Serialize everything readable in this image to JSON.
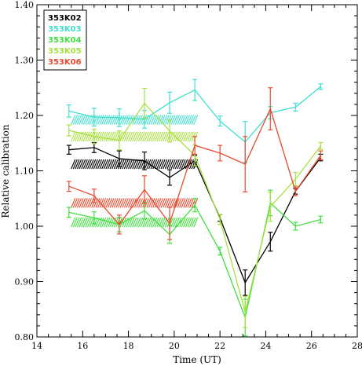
{
  "chart_data": {
    "type": "line",
    "xlabel": "Time (UT)",
    "ylabel": "Relative calibration",
    "xlim": [
      14,
      28
    ],
    "ylim": [
      0.8,
      1.4
    ],
    "xticks": [
      "14",
      "16",
      "18",
      "20",
      "22",
      "24",
      "26",
      "28"
    ],
    "yticks": [
      "0.80",
      "0.90",
      "1.00",
      "1.10",
      "1.20",
      "1.30",
      "1.40"
    ],
    "legend_position": "top-left",
    "hatch_range": [
      15.5,
      20.9
    ],
    "series": [
      {
        "name": "353K02",
        "color": "#000000",
        "x": [
          15.4,
          16.5,
          17.6,
          18.7,
          19.8,
          20.9,
          22.0,
          23.1,
          24.2,
          25.3,
          26.4
        ],
        "y": [
          1.138,
          1.142,
          1.122,
          1.118,
          1.088,
          1.118,
          1.015,
          0.898,
          0.972,
          1.063,
          1.124
        ],
        "err": [
          0.008,
          0.009,
          0.014,
          0.016,
          0.014,
          0.01,
          0.006,
          0.023,
          0.017,
          0.005,
          0.006
        ],
        "band": 1.112
      },
      {
        "name": "353K03",
        "color": "#3fe0d0",
        "x": [
          15.4,
          16.5,
          17.6,
          18.7,
          19.8,
          20.9,
          22.0,
          23.1,
          24.2,
          25.3,
          26.4
        ],
        "y": [
          1.208,
          1.197,
          1.196,
          1.193,
          1.223,
          1.246,
          1.19,
          1.152,
          1.205,
          1.215,
          1.252
        ],
        "err": [
          0.011,
          0.016,
          0.016,
          0.016,
          0.019,
          0.019,
          0.009,
          0.037,
          0.011,
          0.007,
          0.005
        ],
        "band": 1.192
      },
      {
        "name": "353K04",
        "color": "#40e040",
        "x": [
          15.4,
          16.5,
          17.6,
          18.7,
          19.8,
          20.9,
          22.0,
          23.1,
          24.2,
          25.3,
          26.4
        ],
        "y": [
          1.025,
          1.015,
          1.003,
          1.028,
          0.985,
          1.038,
          0.955,
          0.835,
          1.042,
          1.0,
          1.012
        ],
        "err": [
          0.009,
          0.011,
          0.013,
          0.015,
          0.016,
          0.012,
          0.007,
          0.033,
          0.023,
          0.007,
          0.006
        ],
        "band": 1.007
      },
      {
        "name": "353K05",
        "color": "#a8e040",
        "x": [
          15.4,
          16.5,
          17.6,
          18.7,
          19.8,
          20.9,
          22.0,
          23.1,
          24.2,
          25.3,
          26.4
        ],
        "y": [
          1.173,
          1.162,
          1.155,
          1.222,
          1.172,
          1.128,
          1.012,
          0.845,
          1.035,
          1.085,
          1.145
        ],
        "err": [
          0.01,
          0.013,
          0.017,
          0.027,
          0.02,
          0.019,
          0.009,
          0.028,
          0.026,
          0.012,
          0.006
        ],
        "band": 1.162
      },
      {
        "name": "353K06",
        "color": "#e84a30",
        "x": [
          15.4,
          16.5,
          17.6,
          18.7,
          19.8,
          20.9,
          22.0,
          23.1,
          24.2,
          25.3,
          26.4
        ],
        "y": [
          1.072,
          1.055,
          1.003,
          1.066,
          1.005,
          1.146,
          1.132,
          1.112,
          1.212,
          1.063,
          1.128
        ],
        "err": [
          0.009,
          0.012,
          0.017,
          0.025,
          0.029,
          0.016,
          0.014,
          0.05,
          0.038,
          0.008,
          0.008
        ],
        "band": 1.042
      }
    ]
  }
}
